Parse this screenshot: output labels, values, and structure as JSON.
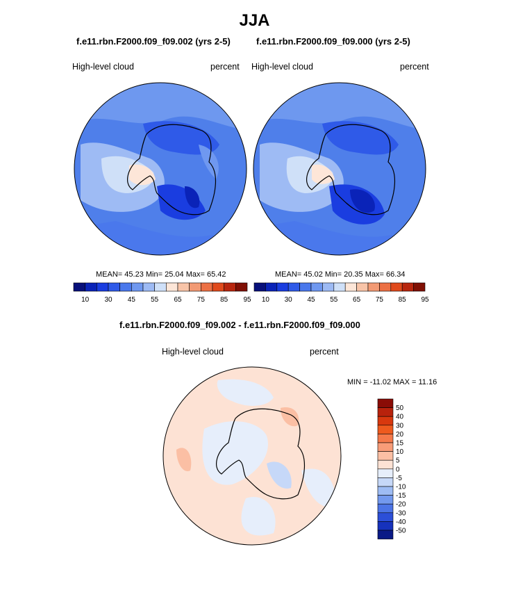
{
  "title": "JJA",
  "panels": [
    {
      "case": "f.e11.rbn.F2000.f09_f09.002 (yrs 2-5)",
      "variable": "High-level cloud",
      "units": "percent",
      "stats": {
        "mean_label": "MEAN=",
        "mean": "45.23",
        "min_label": "Min=",
        "min": "25.04",
        "max_label": "Max=",
        "max": "65.42"
      },
      "colorbar": {
        "colors": [
          "#08107a",
          "#0a23b8",
          "#1a3de0",
          "#2f5ae8",
          "#4a78ec",
          "#6f98f0",
          "#9dbaf4",
          "#cfe0f8",
          "#fde6d8",
          "#f8c4a8",
          "#f29a74",
          "#ec7044",
          "#e04a1c",
          "#b8260e",
          "#801004"
        ],
        "tick_labels": [
          "10",
          "30",
          "45",
          "55",
          "65",
          "75",
          "85",
          "95"
        ]
      }
    },
    {
      "case": "f.e11.rbn.F2000.f09_f09.000 (yrs 2-5)",
      "variable": "High-level cloud",
      "units": "percent",
      "stats": {
        "mean_label": "MEAN=",
        "mean": "45.02",
        "min_label": "Min=",
        "min": "20.35",
        "max_label": "Max=",
        "max": "66.34"
      },
      "colorbar": {
        "colors": [
          "#08107a",
          "#0a23b8",
          "#1a3de0",
          "#2f5ae8",
          "#4a78ec",
          "#6f98f0",
          "#9dbaf4",
          "#cfe0f8",
          "#fde6d8",
          "#f8c4a8",
          "#f29a74",
          "#ec7044",
          "#e04a1c",
          "#b8260e",
          "#801004"
        ],
        "tick_labels": [
          "10",
          "30",
          "45",
          "55",
          "65",
          "75",
          "85",
          "95"
        ]
      }
    }
  ],
  "diff": {
    "title": "f.e11.rbn.F2000.f09_f09.002 - f.e11.rbn.F2000.f09_f09.000",
    "variable": "High-level cloud",
    "units": "percent",
    "minmax": "MIN = -11.02 MAX =  11.16",
    "colorbar": {
      "colors_top_to_bottom": [
        "#8a0c06",
        "#b8220c",
        "#d8380e",
        "#ee5a1e",
        "#f5794a",
        "#f89c78",
        "#fbbfa4",
        "#fde2d4",
        "#e6eefb",
        "#c6d8f8",
        "#9ebcf4",
        "#7399ee",
        "#4c74e6",
        "#2c4fd8",
        "#1632bc",
        "#0a1a86"
      ],
      "labels_top_to_bottom": [
        "50",
        "40",
        "30",
        "20",
        "15",
        "10",
        "5",
        "0",
        "-5",
        "-10",
        "-15",
        "-20",
        "-30",
        "-40",
        "-50"
      ]
    }
  }
}
